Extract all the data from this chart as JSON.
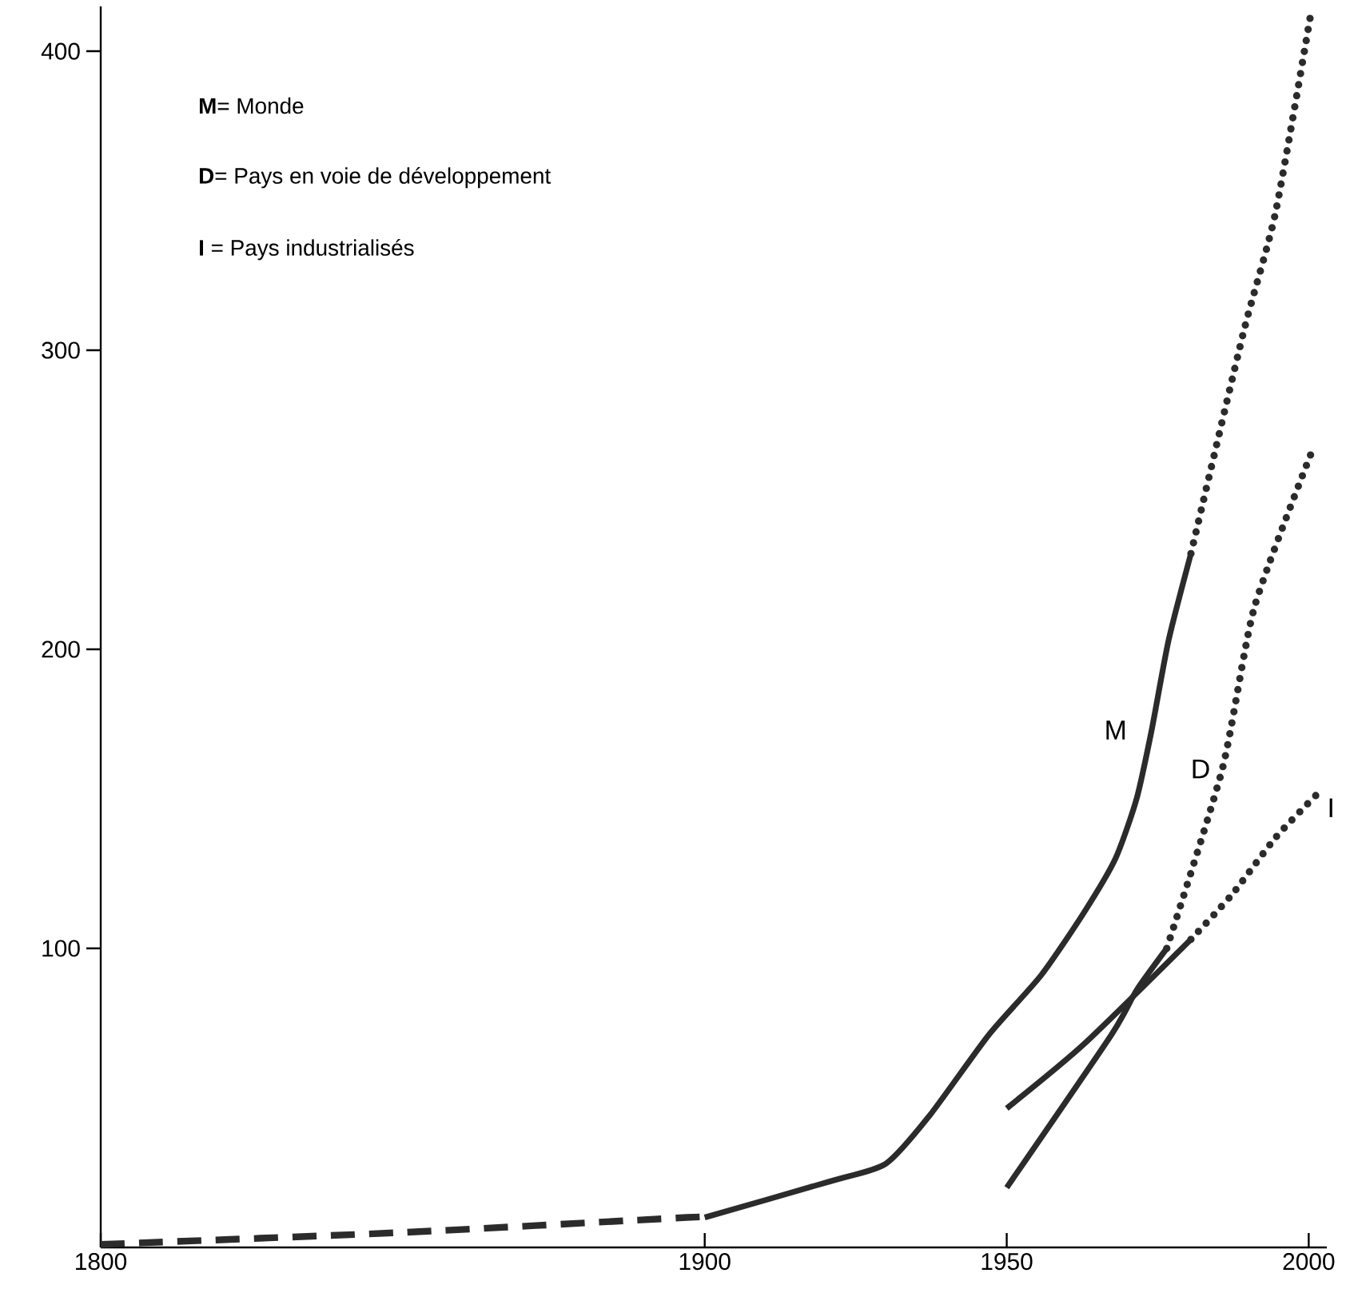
{
  "chart_data": {
    "type": "line",
    "xlim": [
      1800,
      2003
    ],
    "ylim": [
      0,
      415
    ],
    "xticks": [
      1800,
      1900,
      1950,
      2000
    ],
    "yticks": [
      100,
      200,
      300,
      400
    ],
    "color": "#2b2b2b",
    "series": [
      {
        "x": [
          1800,
          1850,
          1897,
          1900
        ],
        "values": [
          1,
          5,
          10,
          10
        ],
        "line_style": "dashed"
      },
      {
        "name": "M",
        "x": [
          1900,
          1920.6,
          1930,
          1937.2,
          1947,
          1955.7,
          1962.8,
          1968,
          1971.5,
          1974,
          1976.8,
          1980.5
        ],
        "values": [
          10,
          22,
          28,
          44,
          71,
          91,
          112,
          130,
          150,
          173,
          203,
          232
        ],
        "line_style": "solid"
      },
      {
        "x": [
          1980.5,
          1989.2,
          1994.5,
          2000.3
        ],
        "values": [
          232,
          306,
          346,
          412
        ],
        "line_style": "dotted"
      },
      {
        "x": [
          1950,
          1962.8,
          1980.5
        ],
        "values": [
          46.5,
          68,
          103
        ],
        "line_style": "solid"
      },
      {
        "name": "I",
        "x": [
          1980.5,
          1987.3,
          1994.5,
          2001.6
        ],
        "values": [
          103,
          118,
          137,
          152
        ],
        "line_style": "dotted"
      },
      {
        "x": [
          1950,
          1967.3,
          1971.5,
          1976.5
        ],
        "values": [
          20,
          71,
          86,
          100
        ],
        "line_style": "solid"
      },
      {
        "name": "D",
        "x": [
          1976.5,
          1985.7,
          1991,
          2000.3
        ],
        "values": [
          100,
          160,
          214,
          265
        ],
        "line_style": "dotted"
      }
    ],
    "annotations": [
      "**M**= Monde",
      "**D**= Pays en voie de développement",
      "**I** = Pays industrialisés"
    ]
  }
}
